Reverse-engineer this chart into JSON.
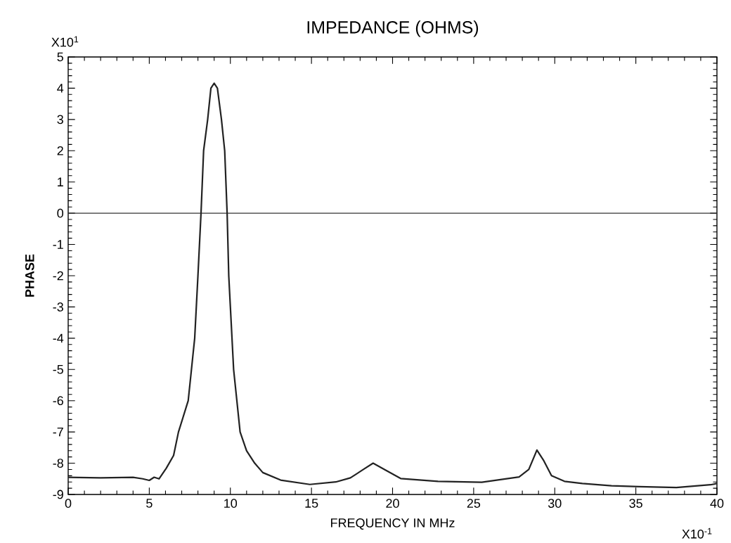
{
  "chart_data": {
    "type": "line",
    "title": "IMPEDANCE (OHMS)",
    "xlabel": "FREQUENCY IN MHz",
    "ylabel": "PHASE",
    "annotations": [
      "X10$^{1}$",
      "X10$^{-1}$"
    ],
    "x": [
      0,
      2,
      4,
      4.6,
      5,
      5.3,
      5.6,
      6.05,
      6.5,
      6.8,
      7.1,
      7.4,
      7.6,
      7.8,
      7.9,
      8.0,
      8.19,
      8.35,
      8.6,
      8.8,
      9.0,
      9.2,
      9.45,
      9.65,
      9.8,
      9.9,
      10.0,
      10.2,
      10.4,
      10.6,
      11.0,
      11.5,
      12.0,
      13.1,
      14.9,
      16.5,
      17.4,
      18.2,
      18.8,
      19.5,
      20.5,
      22.8,
      25.5,
      27.8,
      28.4,
      28.9,
      29.3,
      29.8,
      30.6,
      31.7,
      33.5,
      35.2,
      37.5,
      39.6,
      40
    ],
    "values": [
      -8.45,
      -8.47,
      -8.45,
      -8.5,
      -8.55,
      -8.45,
      -8.5,
      -8.16,
      -7.75,
      -7.0,
      -6.5,
      -6.0,
      -5.0,
      -4.0,
      -3.0,
      -2.0,
      0,
      2.0,
      3.0,
      4.0,
      4.16,
      4.0,
      3.0,
      2.0,
      0,
      -2.0,
      -3.0,
      -5.0,
      -6.0,
      -7.0,
      -7.6,
      -8.0,
      -8.3,
      -8.54,
      -8.68,
      -8.6,
      -8.47,
      -8.2,
      -8.0,
      -8.2,
      -8.49,
      -8.58,
      -8.61,
      -8.44,
      -8.2,
      -7.58,
      -7.9,
      -8.4,
      -8.58,
      -8.65,
      -8.72,
      -8.75,
      -8.78,
      -8.69,
      -8.65
    ],
    "color": "#222222",
    "line_style": "solid",
    "marker": "none",
    "xlim": [
      0,
      40
    ],
    "ylim": [
      -9,
      5
    ],
    "xticks": [
      0,
      5,
      10,
      15,
      20,
      25,
      30,
      35,
      40
    ],
    "yticks": [
      -9,
      -8,
      -7,
      -6,
      -5,
      -4,
      -3,
      -2,
      -1,
      0,
      1,
      2,
      3,
      4,
      5
    ],
    "ref_lines": [
      {
        "axis": "y",
        "value": 0,
        "color": "#333333"
      }
    ]
  }
}
